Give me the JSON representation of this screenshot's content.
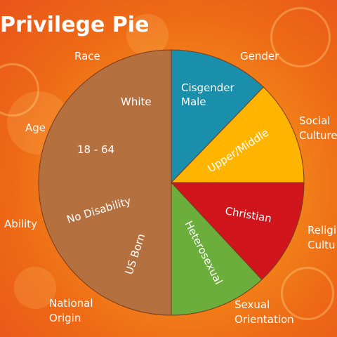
{
  "title": "Privilege Pie",
  "chart_data": {
    "type": "pie",
    "slices": [
      {
        "label": "White",
        "category": "Race",
        "color": "#b5703f"
      },
      {
        "label": "18 - 64",
        "category": "Age",
        "color": "#b5703f"
      },
      {
        "label": "No Disability",
        "category": "Ability",
        "color": "#b5703f"
      },
      {
        "label": "US Born",
        "category": "National Origin",
        "color": "#b5703f"
      },
      {
        "label": "Cisgender Male",
        "category": "Gender",
        "color": "#1a8fab"
      },
      {
        "label": "Upper/Middle",
        "category": "Social Culture",
        "color": "#ffb400"
      },
      {
        "label": "Christian",
        "category": "Religious Culture",
        "color": "#d1151c"
      },
      {
        "label": "Heterosexual",
        "category": "Sexual Orientation",
        "color": "#6cae3b"
      }
    ],
    "outer_labels": {
      "race": "Race",
      "gender": "Gender",
      "age": "Age",
      "social": "Social\nCulture",
      "ability": "Ability",
      "religious": "Religi\nCultu",
      "national": "National\nOrigin",
      "sexual": "Sexual\nOrientation"
    }
  }
}
